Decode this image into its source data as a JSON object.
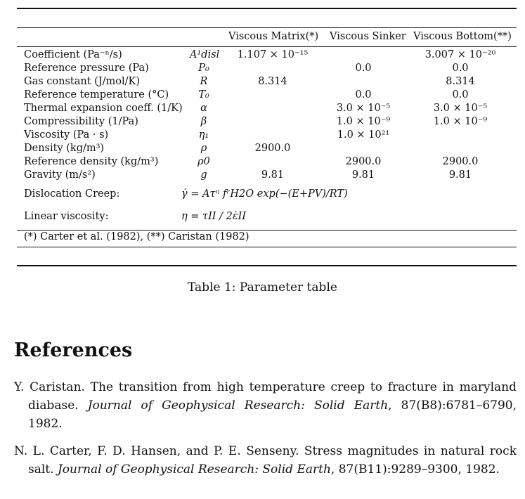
{
  "table": {
    "headers": [
      "Viscous Matrix(*)",
      "Viscous Sinker",
      "Viscous Bottom(**)"
    ],
    "rows": [
      {
        "name": "Coefficient (Pa⁻ⁿ/s)",
        "symbol": "A¹disl",
        "v1": "1.107 × 10⁻¹⁵",
        "v2": "",
        "v3": "3.007 × 10⁻²⁰"
      },
      {
        "name": "Reference pressure (Pa)",
        "symbol": "P₀",
        "v1": "",
        "v2": "0.0",
        "v3": "0.0"
      },
      {
        "name": "Gas constant (J/mol/K)",
        "symbol": "R",
        "v1": "8.314",
        "v2": "",
        "v3": "8.314"
      },
      {
        "name": "Reference temperature (°C)",
        "symbol": "T₀",
        "v1": "",
        "v2": "0.0",
        "v3": "0.0"
      },
      {
        "name": "Thermal expansion coeff. (1/K)",
        "symbol": "α",
        "v1": "",
        "v2": "3.0 × 10⁻⁵",
        "v3": "3.0 × 10⁻⁵"
      },
      {
        "name": "Compressibility (1/Pa)",
        "symbol": "β",
        "v1": "",
        "v2": "1.0 × 10⁻⁹",
        "v3": "1.0 × 10⁻⁹"
      },
      {
        "name": "Viscosity (Pa · s)",
        "symbol": "η₁",
        "v1": "",
        "v2": "1.0 × 10²¹",
        "v3": ""
      },
      {
        "name": "Density (kg/m³)",
        "symbol": "ρ",
        "v1": "2900.0",
        "v2": "",
        "v3": ""
      },
      {
        "name": "Reference density (kg/m³)",
        "symbol": "ρ0",
        "v1": "",
        "v2": "2900.0",
        "v3": "2900.0"
      },
      {
        "name": "Gravity (m/s²)",
        "symbol": "g",
        "v1": "9.81",
        "v2": "9.81",
        "v3": "9.81"
      }
    ],
    "dislocation": {
      "label": "Dislocation Creep:",
      "equation": "γ̇ = Aτⁿ fʳH2O exp(−(E+PV)/RT)"
    },
    "linear": {
      "label": "Linear viscosity:",
      "equation": "η = τII / 2ε̇II"
    },
    "footnote": "(*) Carter et al. (1982), (**) Caristan (1982)"
  },
  "caption": "Table 1: Parameter table",
  "references_heading": "References",
  "references": [
    {
      "authors": "Y. Caristan.",
      "title": "The transition from high temperature creep to fracture in maryland diabase.",
      "journal": "Journal of Geophysical Research: Solid Earth",
      "rest": ", 87(B8):6781–6790, 1982."
    },
    {
      "authors": "N. L. Carter, F. D. Hansen, and P. E. Senseny.",
      "title": "Stress magnitudes in natural rock salt.",
      "journal": "Journal of Geophysical Research: Solid Earth",
      "rest": ", 87(B11):9289–9300, 1982."
    }
  ]
}
